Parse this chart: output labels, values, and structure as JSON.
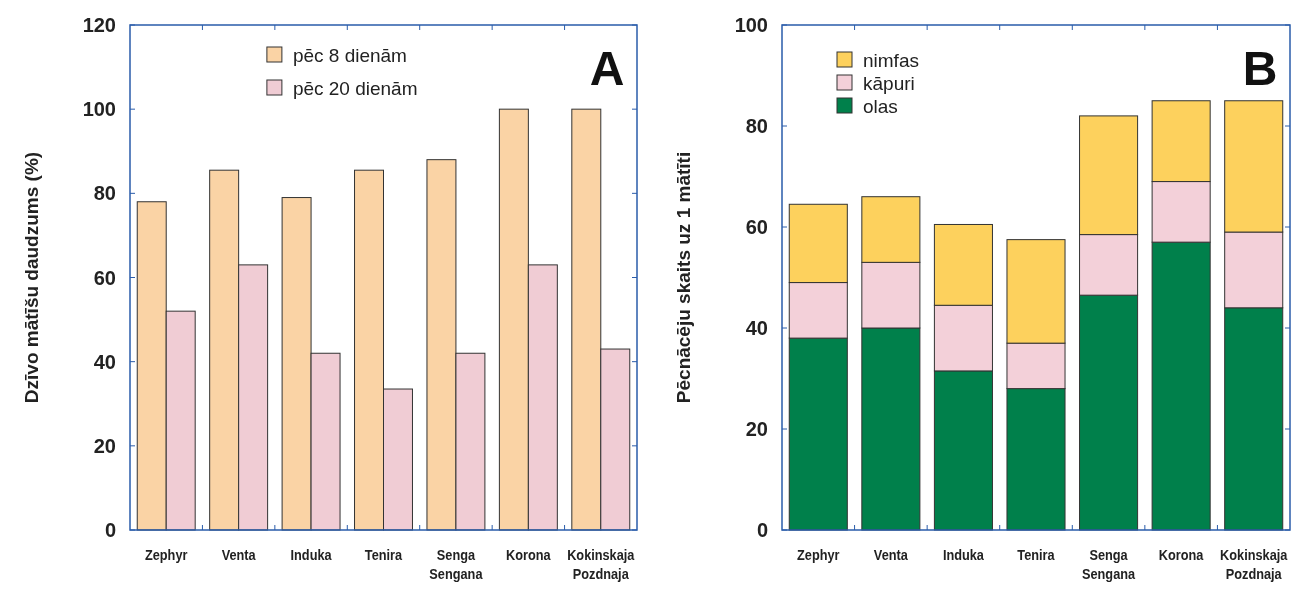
{
  "chart_data": [
    {
      "type": "bar",
      "ylabel": "Dzīvo mātīšu daudzums (%)",
      "categories": [
        "Zephyr",
        "Venta",
        "Induka",
        "Tenira",
        "Senga Sengana",
        "Korona",
        "Kokinskaja Pozdnaja"
      ],
      "series": [
        {
          "name": "pēc 8 dienām",
          "color": "#fad3a5",
          "values": [
            78,
            85.5,
            79,
            85.5,
            88,
            100,
            100
          ]
        },
        {
          "name": "pēc 20 dienām",
          "color": "#f0ccd4",
          "values": [
            52,
            63,
            42,
            33.5,
            42,
            63,
            43
          ]
        }
      ],
      "ylim": [
        0,
        120
      ],
      "yticks": [
        0,
        20,
        40,
        60,
        80,
        100,
        120
      ],
      "legend": "top",
      "annotations": [
        "A"
      ]
    },
    {
      "type": "bar",
      "stacked": true,
      "ylabel": "Pēcnācēju skaits uz 1 mātīti",
      "categories": [
        "Zephyr",
        "Venta",
        "Induka",
        "Tenira",
        "Senga Sengana",
        "Korona",
        "Kokinskaja Pozdnaja"
      ],
      "series": [
        {
          "name": "olas",
          "color": "#00804b",
          "values": [
            38,
            40,
            31.5,
            28,
            46.5,
            57,
            44
          ]
        },
        {
          "name": "kāpuri",
          "color": "#f3d0d9",
          "values": [
            11,
            13,
            13,
            9,
            12,
            12,
            15
          ]
        },
        {
          "name": "nimfas",
          "color": "#fdd15d",
          "values": [
            15.5,
            13,
            16,
            20.5,
            23.5,
            16,
            26
          ]
        }
      ],
      "ylim": [
        0,
        100
      ],
      "yticks": [
        0,
        20,
        40,
        60,
        80,
        100
      ],
      "legend": "top left",
      "annotations": [
        "B"
      ]
    }
  ]
}
